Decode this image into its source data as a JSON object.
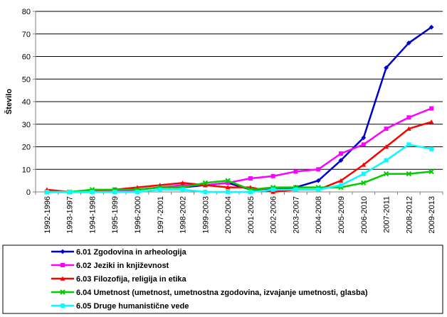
{
  "chart_data": {
    "type": "line",
    "ylabel": "Število",
    "xlabel": "",
    "title": "",
    "ylim": [
      0,
      80
    ],
    "yticks": [
      0,
      10,
      20,
      30,
      40,
      50,
      60,
      70,
      80
    ],
    "grid": "horizontal",
    "legend_position": "bottom",
    "categories": [
      "1992-1996",
      "1993-1997",
      "1994-1998",
      "1995-1999",
      "1996-2000",
      "1997-2001",
      "1998-2002",
      "1999-2003",
      "2000-2004",
      "2001-2005",
      "2002-2006",
      "2003-2007",
      "2004-2008",
      "2005-2009",
      "2006-2010",
      "2007-2011",
      "2008-2012",
      "2009-2013"
    ],
    "series": [
      {
        "name": "6.01 Zgodovina in arheologija",
        "color": "#0000CC",
        "marker": "diamond",
        "values": [
          0,
          0,
          0,
          1,
          1,
          2,
          2,
          3,
          4,
          1,
          1,
          2,
          5,
          14,
          24,
          55,
          66,
          73
        ]
      },
      {
        "name": "6.02 Jeziki in književnost",
        "color": "#FF00FF",
        "marker": "square",
        "values": [
          0,
          0,
          0,
          0,
          1,
          2,
          3,
          3,
          4,
          6,
          7,
          9,
          10,
          17,
          21,
          28,
          33,
          37
        ]
      },
      {
        "name": "6.03 Filozofija, religija in etika",
        "color": "#FF0000",
        "marker": "triangle",
        "values": [
          1,
          0,
          0,
          1,
          2,
          3,
          4,
          3,
          2,
          2,
          0,
          1,
          1,
          5,
          12,
          20,
          28,
          31
        ]
      },
      {
        "name": "6.04 Umetnost (umetnost, umetnostna zgodovina, izvajanje umetnosti, glasba)",
        "color": "#00CC00",
        "marker": "x",
        "values": [
          0,
          0,
          1,
          1,
          1,
          2,
          2,
          4,
          5,
          1,
          2,
          2,
          2,
          2,
          4,
          8,
          8,
          9
        ]
      },
      {
        "name": "6.05 Druge humanistične vede",
        "color": "#00FFFF",
        "marker": "square",
        "values": [
          0,
          0,
          0,
          0,
          0,
          1,
          1,
          0,
          0,
          0,
          1,
          1,
          1,
          3,
          8,
          14,
          21,
          19
        ]
      }
    ]
  }
}
